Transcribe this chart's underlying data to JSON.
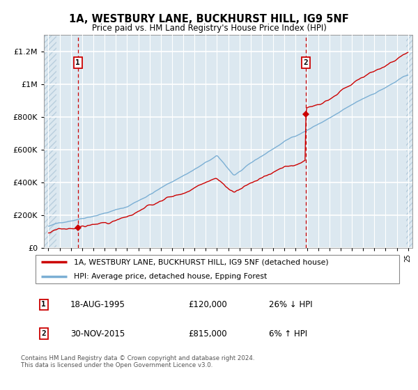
{
  "title": "1A, WESTBURY LANE, BUCKHURST HILL, IG9 5NF",
  "subtitle": "Price paid vs. HM Land Registry's House Price Index (HPI)",
  "ylim": [
    0,
    1300000
  ],
  "yticks": [
    0,
    200000,
    400000,
    600000,
    800000,
    1000000,
    1200000
  ],
  "ytick_labels": [
    "£0",
    "£200K",
    "£400K",
    "£600K",
    "£800K",
    "£1M",
    "£1.2M"
  ],
  "xlim_start": 1992.6,
  "xlim_end": 2025.4,
  "transaction1": {
    "date_num": 1995.625,
    "price": 120000,
    "label": "1"
  },
  "transaction2": {
    "date_num": 2015.917,
    "price": 815000,
    "label": "2"
  },
  "line_color_property": "#cc0000",
  "line_color_hpi": "#7bafd4",
  "bg_color": "#dce8f0",
  "hatch_color": "#b8cedd",
  "grid_color": "#ffffff",
  "legend_label_property": "1A, WESTBURY LANE, BUCKHURST HILL, IG9 5NF (detached house)",
  "legend_label_hpi": "HPI: Average price, detached house, Epping Forest",
  "footnote": "Contains HM Land Registry data © Crown copyright and database right 2024.\nThis data is licensed under the Open Government Licence v3.0.",
  "note1_date": "18-AUG-1995",
  "note1_price": "£120,000",
  "note1_pct": "26% ↓ HPI",
  "note2_date": "30-NOV-2015",
  "note2_price": "£815,000",
  "note2_pct": "6% ↑ HPI"
}
